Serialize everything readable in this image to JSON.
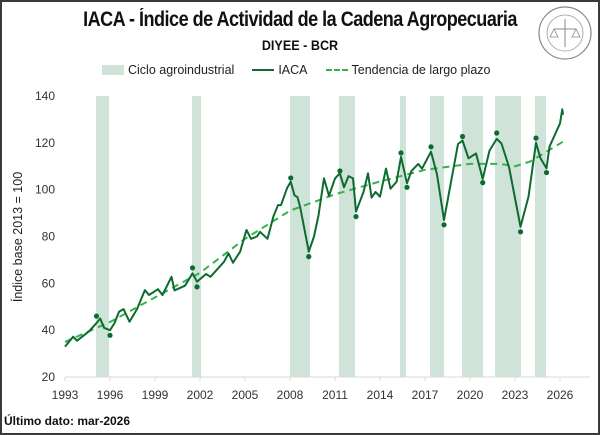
{
  "title": "IACA - Índice de Actividad de la Cadena Agropecuaria",
  "subtitle": "DIYEE - BCR",
  "logo_text": "BOLSA DE COMERCIO DE ROSARIO",
  "footer": "Último dato: mar-2026",
  "legend": {
    "band": "Ciclo agroindustrial",
    "line": "IACA",
    "trend": "Tendencia de largo plazo"
  },
  "colors": {
    "band": "#cfe3d9",
    "line": "#0e6b30",
    "trend": "#33b34a",
    "dots": "#0e6b30"
  },
  "chart_data": {
    "type": "line",
    "title": "IACA - Índice de Actividad de la Cadena Agropecuaria",
    "xlabel": "",
    "ylabel": "Índice base 2013 = 100",
    "xlim": [
      1993,
      2028
    ],
    "ylim": [
      20,
      140
    ],
    "x_ticks": [
      1993,
      1996,
      1999,
      2002,
      2005,
      2008,
      2011,
      2014,
      2017,
      2020,
      2023,
      2026
    ],
    "y_ticks": [
      20,
      40,
      60,
      80,
      100,
      120,
      140
    ],
    "grid": false,
    "legend_position": "top",
    "cycles": [
      [
        1995.07,
        1995.93
      ],
      [
        2001.47,
        2002.07
      ],
      [
        2008.0,
        2009.33
      ],
      [
        2011.27,
        2012.33
      ],
      [
        2015.33,
        2015.73
      ],
      [
        2017.33,
        2018.27
      ],
      [
        2019.47,
        2020.87
      ],
      [
        2021.67,
        2023.4
      ],
      [
        2024.33,
        2025.07
      ]
    ],
    "series": [
      {
        "name": "IACA",
        "points": [
          [
            1993.0,
            33
          ],
          [
            1993.55,
            37.2
          ],
          [
            1993.8,
            35.5
          ],
          [
            1994.1,
            37
          ],
          [
            1994.6,
            39.5
          ],
          [
            1995.1,
            43
          ],
          [
            1995.35,
            45
          ],
          [
            1995.6,
            41
          ],
          [
            1996.0,
            40
          ],
          [
            1996.3,
            43
          ],
          [
            1996.6,
            47.9
          ],
          [
            1996.9,
            49
          ],
          [
            1997.3,
            43.6
          ],
          [
            1997.8,
            49
          ],
          [
            1998.33,
            57.1
          ],
          [
            1998.6,
            55
          ],
          [
            1999.2,
            57.5
          ],
          [
            1999.5,
            55
          ],
          [
            2000.1,
            62.8
          ],
          [
            2000.3,
            57
          ],
          [
            2001.0,
            59
          ],
          [
            2001.5,
            64.3
          ],
          [
            2001.8,
            60.7
          ],
          [
            2002.4,
            64
          ],
          [
            2002.7,
            62.8
          ],
          [
            2003.6,
            69.2
          ],
          [
            2003.9,
            72.8
          ],
          [
            2004.2,
            68.8
          ],
          [
            2004.67,
            73.5
          ],
          [
            2005.1,
            82.8
          ],
          [
            2005.4,
            79
          ],
          [
            2005.8,
            80
          ],
          [
            2006.0,
            82
          ],
          [
            2006.5,
            79
          ],
          [
            2006.9,
            88.7
          ],
          [
            2007.2,
            93.4
          ],
          [
            2007.4,
            93.4
          ],
          [
            2007.8,
            100.6
          ],
          [
            2008.05,
            103.4
          ],
          [
            2008.3,
            97.6
          ],
          [
            2008.5,
            96.8
          ],
          [
            2008.67,
            92.7
          ],
          [
            2009.25,
            73.5
          ],
          [
            2009.6,
            80
          ],
          [
            2009.9,
            89
          ],
          [
            2010.27,
            104.8
          ],
          [
            2010.6,
            97.4
          ],
          [
            2011.0,
            104.8
          ],
          [
            2011.33,
            107
          ],
          [
            2011.6,
            101
          ],
          [
            2011.9,
            105.8
          ],
          [
            2012.2,
            104.8
          ],
          [
            2012.4,
            90.6
          ],
          [
            2012.9,
            99
          ],
          [
            2013.2,
            107
          ],
          [
            2013.44,
            96.6
          ],
          [
            2013.7,
            99
          ],
          [
            2014.0,
            97
          ],
          [
            2014.4,
            109
          ],
          [
            2014.7,
            100.4
          ],
          [
            2015.1,
            103.3
          ],
          [
            2015.4,
            114
          ],
          [
            2015.8,
            102.7
          ],
          [
            2016.1,
            108
          ],
          [
            2016.55,
            111
          ],
          [
            2016.8,
            109
          ],
          [
            2017.4,
            116.2
          ],
          [
            2017.8,
            106.5
          ],
          [
            2018.27,
            87
          ],
          [
            2018.75,
            104
          ],
          [
            2019.2,
            119.5
          ],
          [
            2019.5,
            121
          ],
          [
            2019.9,
            113.4
          ],
          [
            2020.4,
            115.5
          ],
          [
            2020.85,
            104.6
          ],
          [
            2021.3,
            116.7
          ],
          [
            2021.78,
            121.7
          ],
          [
            2022.1,
            119.7
          ],
          [
            2022.6,
            109.7
          ],
          [
            2023.37,
            84.2
          ],
          [
            2023.9,
            97
          ],
          [
            2024.4,
            120
          ],
          [
            2024.7,
            113.4
          ],
          [
            2025.1,
            109.1
          ],
          [
            2025.3,
            118.4
          ],
          [
            2025.6,
            122.6
          ],
          [
            2026.0,
            128.3
          ],
          [
            2026.15,
            134.3
          ],
          [
            2026.2,
            132
          ]
        ]
      },
      {
        "name": "Tendencia de largo plazo",
        "points": [
          [
            1993,
            35
          ],
          [
            1996,
            43.5
          ],
          [
            1999,
            54
          ],
          [
            2002,
            64.5
          ],
          [
            2005,
            79
          ],
          [
            2008,
            91
          ],
          [
            2011,
            98
          ],
          [
            2014,
            103.5
          ],
          [
            2017,
            108.5
          ],
          [
            2020,
            111
          ],
          [
            2022,
            111
          ],
          [
            2023,
            110
          ],
          [
            2024,
            112
          ],
          [
            2026.2,
            120.5
          ]
        ]
      }
    ],
    "turning_points": [
      [
        1995.1,
        46
      ],
      [
        1996.0,
        37.8
      ],
      [
        2001.5,
        66.6
      ],
      [
        2001.8,
        58.5
      ],
      [
        2008.05,
        105
      ],
      [
        2009.25,
        71.4
      ],
      [
        2011.33,
        108
      ],
      [
        2012.4,
        88.5
      ],
      [
        2015.4,
        115.7
      ],
      [
        2015.8,
        101
      ],
      [
        2017.4,
        118.3
      ],
      [
        2018.27,
        85
      ],
      [
        2019.5,
        122.7
      ],
      [
        2020.85,
        103
      ],
      [
        2021.78,
        124.2
      ],
      [
        2023.37,
        82
      ],
      [
        2024.4,
        122
      ],
      [
        2025.1,
        107.3
      ]
    ]
  }
}
